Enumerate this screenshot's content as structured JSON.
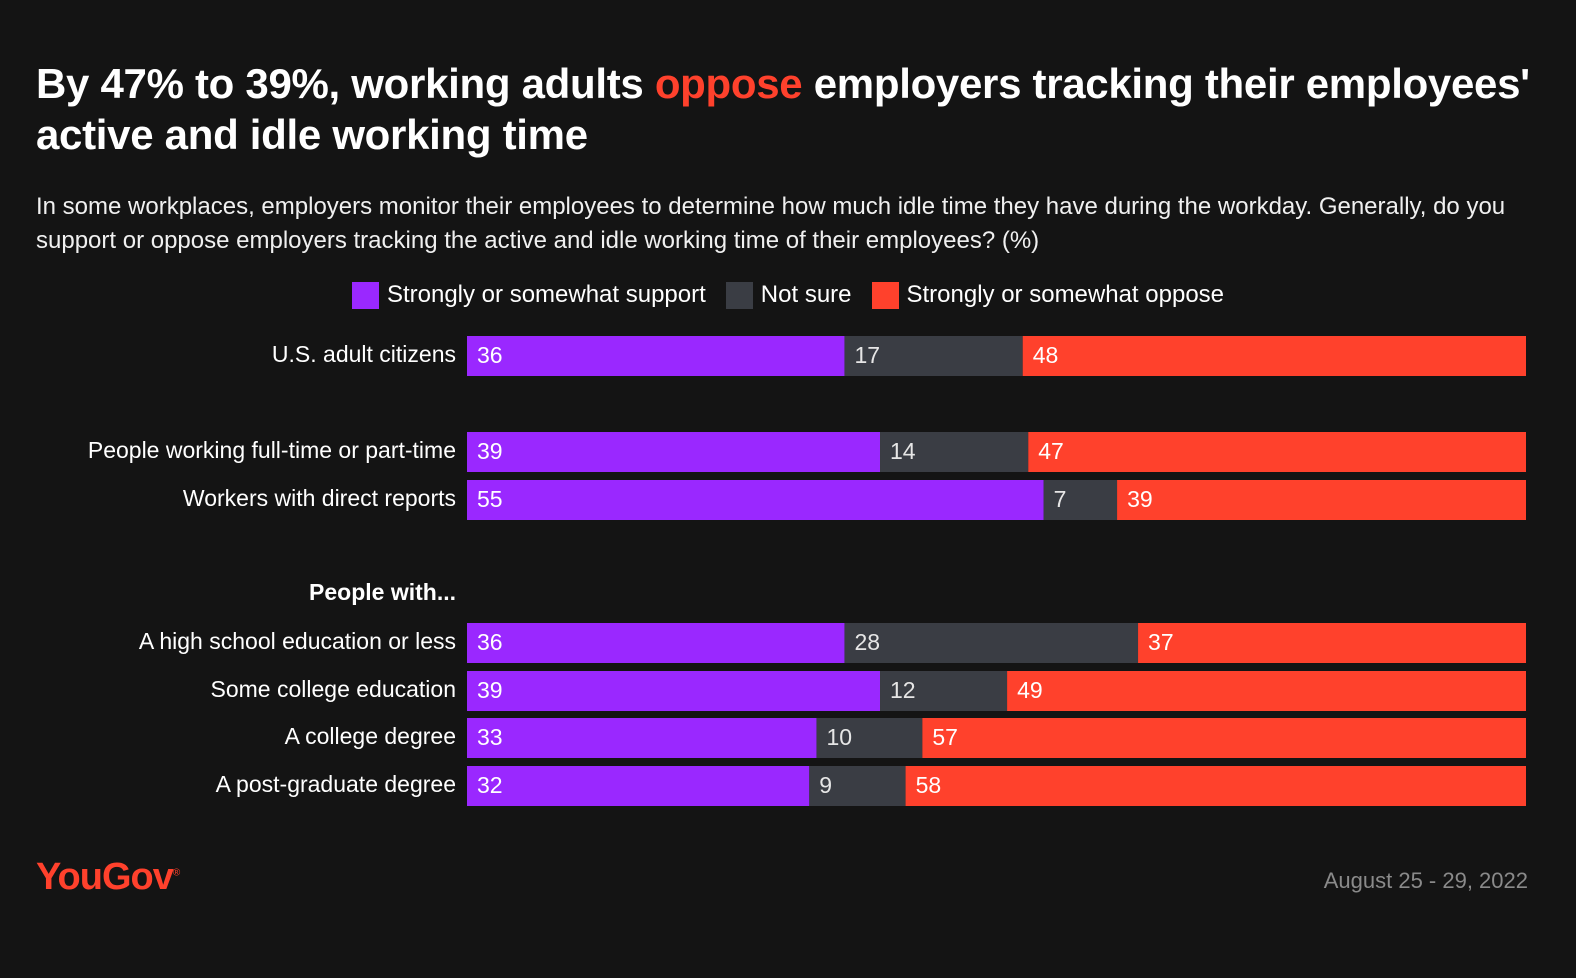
{
  "title": {
    "pre": "By 47% to 39%, working adults ",
    "highlight": "oppose",
    "post": " employers tracking their employees' active and idle working time"
  },
  "subtitle": "In some workplaces, employers monitor their employees to determine how much idle time they have during the workday. Generally, do you support or oppose employers tracking the active and idle working time of their employees? (%)",
  "legend": [
    {
      "label": "Strongly or somewhat support",
      "color": "#9a28ff"
    },
    {
      "label": "Not sure",
      "color": "#3a3d44"
    },
    {
      "label": "Strongly or somewhat oppose",
      "color": "#ff412c"
    }
  ],
  "chart_data": {
    "type": "bar",
    "orientation": "horizontal",
    "stacked": true,
    "normalized": true,
    "title": "By 47% to 39%, working adults oppose employers tracking their employees' active and idle working time",
    "xlabel": "",
    "ylabel": "",
    "section_label": "People with...",
    "categories": [
      "U.S. adult citizens",
      "People working full-time or part-time",
      "Workers with direct reports",
      "A high school education or less",
      "Some college education",
      "A college degree",
      "A post-graduate degree"
    ],
    "series": [
      {
        "name": "Strongly or somewhat support",
        "color": "#9a28ff",
        "values": [
          36,
          39,
          55,
          36,
          39,
          33,
          32
        ]
      },
      {
        "name": "Not sure",
        "color": "#3a3d44",
        "values": [
          17,
          14,
          7,
          28,
          12,
          10,
          9
        ]
      },
      {
        "name": "Strongly or somewhat oppose",
        "color": "#ff412c",
        "values": [
          48,
          47,
          39,
          37,
          49,
          57,
          58
        ]
      }
    ]
  },
  "footer": {
    "brand": "YouGov",
    "brand_mark": "®",
    "date": "August 25 - 29, 2022"
  }
}
